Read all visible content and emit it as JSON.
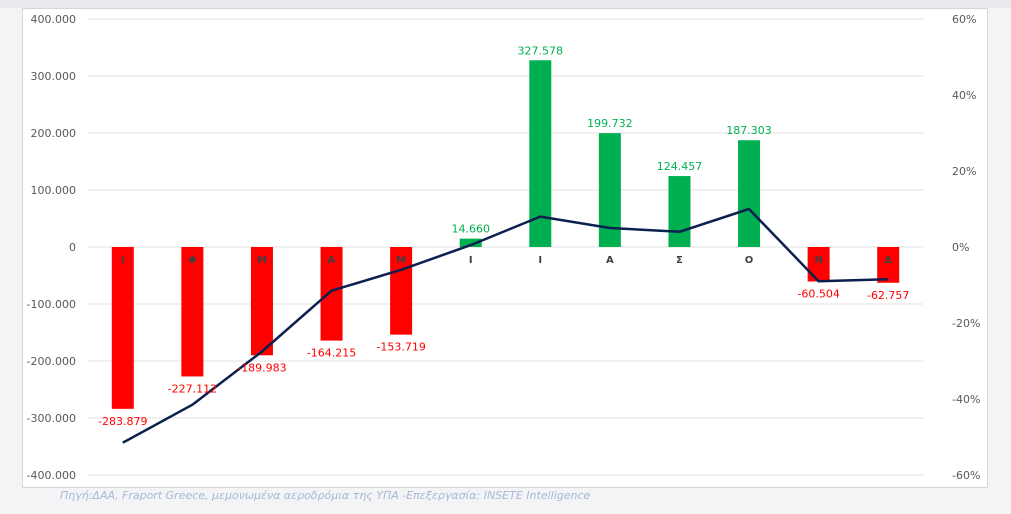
{
  "source_note": "Πηγή:ΔΑΑ, Fraport Greece, μεμονωμένα αεροδρόμια της ΥΠΑ -Επεξεργασία: INSETE Intelligence",
  "colors": {
    "positive_bar": "#00b050",
    "negative_bar": "#ff0000",
    "line": "#0d1f4f",
    "gridline": "#e0e0e0",
    "axis_text": "#595959",
    "positive_label": "#00b050",
    "negative_label": "#ff0000"
  },
  "chart_data": {
    "type": "bar",
    "title": "",
    "xlabel": "",
    "ylabel": "",
    "categories": [
      "Ι",
      "Φ",
      "Μ",
      "Α",
      "Μ",
      "Ι",
      "Ι",
      "Α",
      "Σ",
      "Ο",
      "Ν",
      "Δ"
    ],
    "series": [
      {
        "type": "bar",
        "axis": "left",
        "values": [
          -283879,
          -227112,
          -189983,
          -164215,
          -153719,
          14660,
          327578,
          199732,
          124457,
          187303,
          -60504,
          -62757
        ],
        "data_labels": [
          "-283.879",
          "-227.112",
          "-189.983",
          "-164.215",
          "-153.719",
          "14.660",
          "327.578",
          "199.732",
          "124.457",
          "187.303",
          "-60.504",
          "-62.757"
        ]
      },
      {
        "type": "line",
        "axis": "right",
        "values": [
          -51.5,
          -41.5,
          -27.5,
          -11.5,
          -6.0,
          0.5,
          8.0,
          5.0,
          4.0,
          10.0,
          -9.0,
          -8.5
        ]
      }
    ],
    "ylim": [
      -400000,
      400000
    ],
    "y2lim": [
      -60,
      60
    ],
    "y_ticks": [
      400000,
      300000,
      200000,
      100000,
      0,
      -100000,
      -200000,
      -300000,
      -400000
    ],
    "y_tick_labels": [
      "400.000",
      "300.000",
      "200.000",
      "100.000",
      "0",
      "-100.000",
      "-200.000",
      "-300.000",
      "-400.000"
    ],
    "y2_ticks": [
      60,
      40,
      20,
      0,
      -20,
      -40,
      -60
    ],
    "y2_tick_labels": [
      "60%",
      "40%",
      "20%",
      "0%",
      "-20%",
      "-40%",
      "-60%"
    ],
    "grid": true,
    "legend": "none"
  }
}
